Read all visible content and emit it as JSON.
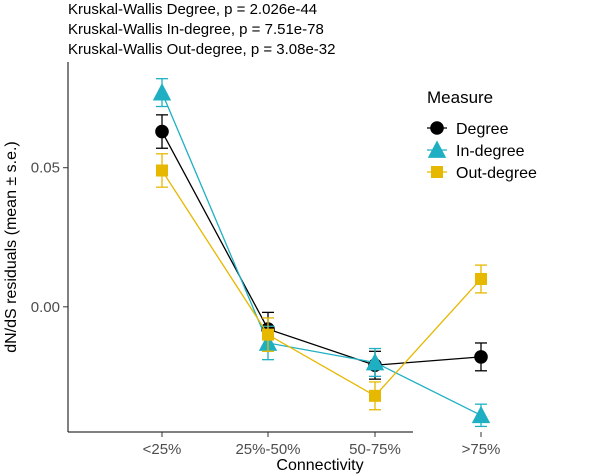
{
  "chart_data": {
    "type": "line",
    "subtitles": [
      "Kruskal-Wallis Degree, p = 2.026e-44",
      "Kruskal-Wallis In-degree, p = 7.51e-78",
      "Kruskal-Wallis Out-degree, p = 3.08e-32"
    ],
    "xlabel": "Connectivity",
    "ylabel": "dN/dS residuals (mean ± s.e.)",
    "categories": [
      "<25%",
      "25%-50%",
      "50-75%",
      ">75%"
    ],
    "y_ticks": [
      {
        "value": 0.05,
        "label": "0.05"
      },
      {
        "value": 0.0,
        "label": "0.00"
      }
    ],
    "ylim": [
      -0.045,
      0.088
    ],
    "grid": false,
    "legend": {
      "title": "Measure",
      "position": "top-right"
    },
    "series": [
      {
        "name": "Degree",
        "color": "#000000",
        "marker": "circle",
        "values": [
          0.063,
          -0.008,
          -0.021,
          -0.018
        ],
        "se": [
          0.006,
          0.006,
          0.005,
          0.005
        ]
      },
      {
        "name": "In-degree",
        "color": "#1eb0c2",
        "marker": "triangle",
        "values": [
          0.077,
          -0.013,
          -0.02,
          -0.039
        ],
        "se": [
          0.005,
          0.006,
          0.005,
          0.004
        ]
      },
      {
        "name": "Out-degree",
        "color": "#e6b800",
        "marker": "square",
        "values": [
          0.049,
          -0.01,
          -0.032,
          0.01
        ],
        "se": [
          0.006,
          0.006,
          0.005,
          0.005
        ]
      }
    ]
  }
}
